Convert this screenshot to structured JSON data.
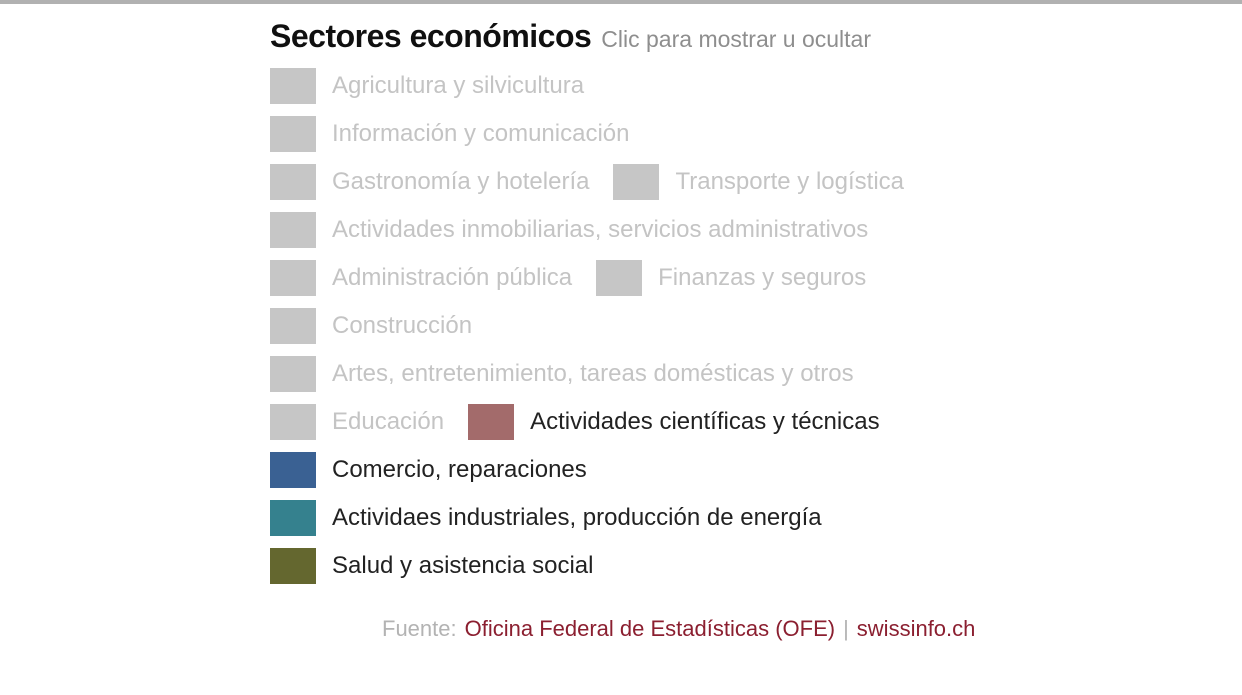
{
  "page": {
    "background": "#ffffff",
    "top_border_color": "#b1b1b1"
  },
  "header": {
    "title": "Sectores económicos",
    "subtitle": "Clic para mostrar u ocultar"
  },
  "legend": {
    "hidden_swatch_color": "#c6c6c6",
    "hidden_label_color": "#c4c4c4",
    "active_label_color": "#222222",
    "rows": [
      {
        "items": [
          {
            "label": "Agricultura y silvicultura",
            "active": false,
            "color": "#c6c6c6"
          }
        ]
      },
      {
        "items": [
          {
            "label": "Información y comunicación",
            "active": false,
            "color": "#c6c6c6"
          }
        ]
      },
      {
        "items": [
          {
            "label": "Gastronomía y hotelería",
            "active": false,
            "color": "#c6c6c6"
          },
          {
            "label": "Transporte y logística",
            "active": false,
            "color": "#c6c6c6"
          }
        ]
      },
      {
        "items": [
          {
            "label": "Actividades inmobiliarias, servicios administrativos",
            "active": false,
            "color": "#c6c6c6"
          }
        ]
      },
      {
        "items": [
          {
            "label": "Administración pública",
            "active": false,
            "color": "#c6c6c6"
          },
          {
            "label": "Finanzas y seguros",
            "active": false,
            "color": "#c6c6c6"
          }
        ]
      },
      {
        "items": [
          {
            "label": "Construcción",
            "active": false,
            "color": "#c6c6c6"
          }
        ]
      },
      {
        "items": [
          {
            "label": "Artes, entretenimiento, tareas domésticas y otros",
            "active": false,
            "color": "#c6c6c6"
          }
        ]
      },
      {
        "items": [
          {
            "label": "Educación",
            "active": false,
            "color": "#c6c6c6"
          },
          {
            "label": "Actividades científicas y técnicas",
            "active": true,
            "color": "#a36b6b"
          }
        ]
      },
      {
        "items": [
          {
            "label": "Comercio, reparaciones",
            "active": true,
            "color": "#3a6193"
          }
        ]
      },
      {
        "items": [
          {
            "label": "Actividaes industriales, producción de energía",
            "active": true,
            "color": "#35818e"
          }
        ]
      },
      {
        "items": [
          {
            "label": "Salud y asistencia social",
            "active": true,
            "color": "#64672f"
          }
        ]
      }
    ]
  },
  "footer": {
    "prefix": "Fuente:",
    "separator": "|",
    "link_color": "#8b1f30",
    "links": [
      {
        "label": "Oficina Federal de Estadísticas (OFE)"
      },
      {
        "label": "swissinfo.ch"
      }
    ]
  }
}
